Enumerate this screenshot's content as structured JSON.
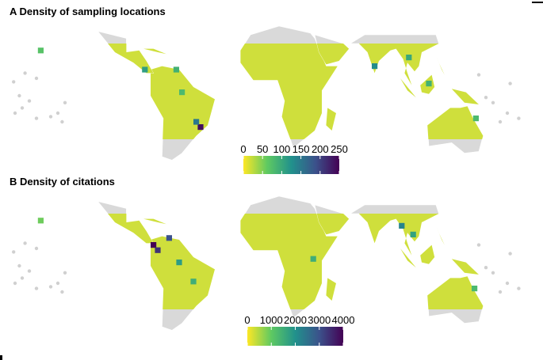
{
  "chart_data": [
    {
      "type": "map",
      "title": "A Density of sampling locations",
      "colorbar": {
        "lim": [
          0,
          250
        ],
        "ticks": [
          0,
          50,
          100,
          150,
          200,
          250
        ]
      },
      "cells": [
        {
          "lon": -45,
          "lat": -23,
          "value": 240
        },
        {
          "lon": -48,
          "lat": -20,
          "value": 150
        },
        {
          "lon": -84,
          "lat": 10,
          "value": 110
        },
        {
          "lon": -62,
          "lat": 10,
          "value": 90
        },
        {
          "lon": -58,
          "lat": -3,
          "value": 80
        },
        {
          "lon": 77,
          "lat": 12,
          "value": 130
        },
        {
          "lon": 101,
          "lat": 17,
          "value": 100
        },
        {
          "lon": 115,
          "lat": 2,
          "value": 90
        },
        {
          "lon": 148,
          "lat": -18,
          "value": 80
        },
        {
          "lon": -157,
          "lat": 21,
          "value": 70
        }
      ]
    },
    {
      "type": "map",
      "title": "B Density of citations",
      "colorbar": {
        "lim": [
          0,
          4000
        ],
        "ticks": [
          0,
          1000,
          2000,
          3000,
          4000
        ]
      },
      "cells": [
        {
          "lon": -78,
          "lat": 7,
          "value": 4000
        },
        {
          "lon": -75,
          "lat": 4,
          "value": 3400
        },
        {
          "lon": -67,
          "lat": 11,
          "value": 3000
        },
        {
          "lon": -60,
          "lat": -3,
          "value": 1800
        },
        {
          "lon": -50,
          "lat": -14,
          "value": 1500
        },
        {
          "lon": 34,
          "lat": -1,
          "value": 1500
        },
        {
          "lon": 96,
          "lat": 18,
          "value": 2200
        },
        {
          "lon": 104,
          "lat": 13,
          "value": 1700
        },
        {
          "lon": 147,
          "lat": -18,
          "value": 1300
        },
        {
          "lon": -157,
          "lat": 21,
          "value": 900
        }
      ]
    }
  ]
}
